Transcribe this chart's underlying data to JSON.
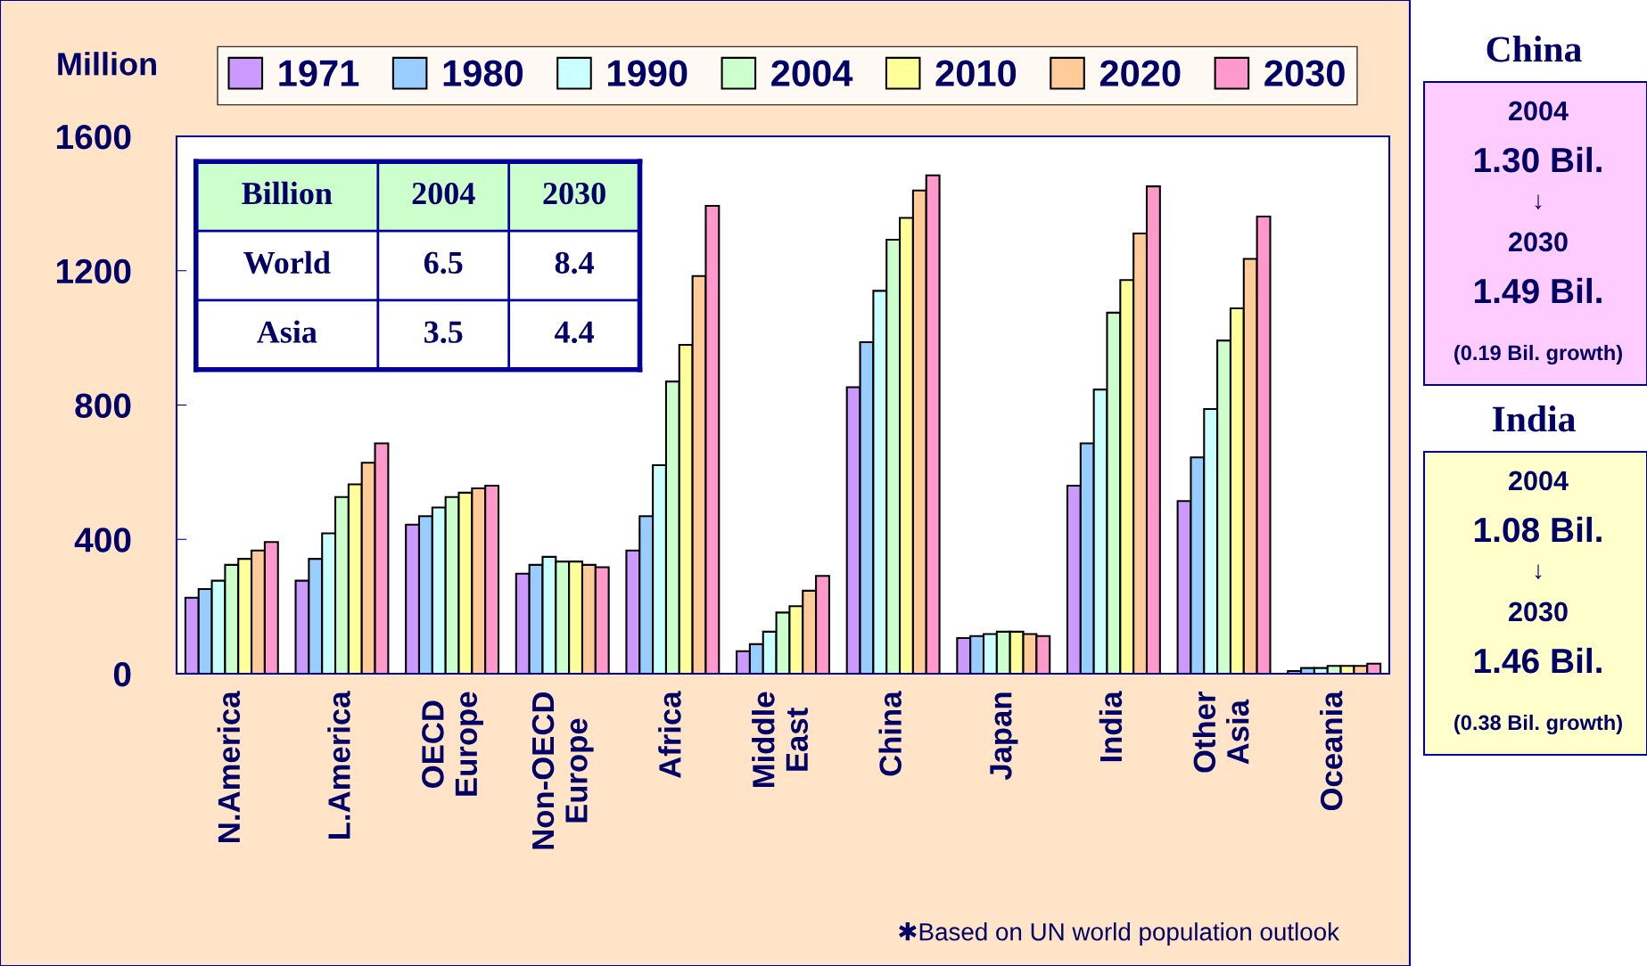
{
  "chart_data": {
    "type": "bar",
    "ylabel": "Million",
    "categories": [
      "N.America",
      "L.America",
      "OECD\nEurope",
      "Non-OECD\nEurope",
      "Africa",
      "Middle\nEast",
      "China",
      "Japan",
      "India",
      "Other\nAsia",
      "Oceania"
    ],
    "series": [
      {
        "name": "1971",
        "color": "#cc99ff",
        "values": [
          226,
          277,
          444,
          298,
          367,
          67,
          853,
          106,
          560,
          514,
          8
        ]
      },
      {
        "name": "1980",
        "color": "#99ccff",
        "values": [
          252,
          342,
          469,
          324,
          469,
          88,
          987,
          112,
          686,
          644,
          17
        ]
      },
      {
        "name": "1990",
        "color": "#ccffff",
        "values": [
          277,
          418,
          495,
          348,
          621,
          125,
          1140,
          118,
          846,
          788,
          17
        ]
      },
      {
        "name": "2004",
        "color": "#ccffcc",
        "values": [
          324,
          526,
          526,
          334,
          870,
          182,
          1292,
          125,
          1075,
          992,
          23
        ]
      },
      {
        "name": "2010",
        "color": "#ffff99",
        "values": [
          342,
          564,
          539,
          334,
          979,
          201,
          1357,
          125,
          1172,
          1088,
          23
        ]
      },
      {
        "name": "2020",
        "color": "#ffcc99",
        "values": [
          367,
          628,
          552,
          324,
          1184,
          247,
          1439,
          118,
          1311,
          1235,
          23
        ]
      },
      {
        "name": "2030",
        "color": "#ff99cc",
        "values": [
          392,
          686,
          560,
          317,
          1393,
          291,
          1484,
          112,
          1451,
          1361,
          30
        ]
      }
    ],
    "ylim": [
      0,
      1600
    ],
    "yticks": [
      0,
      400,
      800,
      1200,
      1600
    ],
    "grid": false,
    "legend": "top",
    "annotations": [
      "Billion",
      "2004",
      "2030",
      "World",
      "6.5",
      "8.4",
      "Asia",
      "3.5",
      "4.4",
      "China",
      "2004",
      "1.30 Bil.",
      "↓",
      "2030",
      "1.49 Bil.",
      "(0.19 Bil. growth)",
      "India",
      "2004",
      "1.08 Bil.",
      "↓",
      "2030",
      "1.46 Bil.",
      "(0.38 Bil. growth)",
      "✱Based on UN world population outlook"
    ]
  }
}
